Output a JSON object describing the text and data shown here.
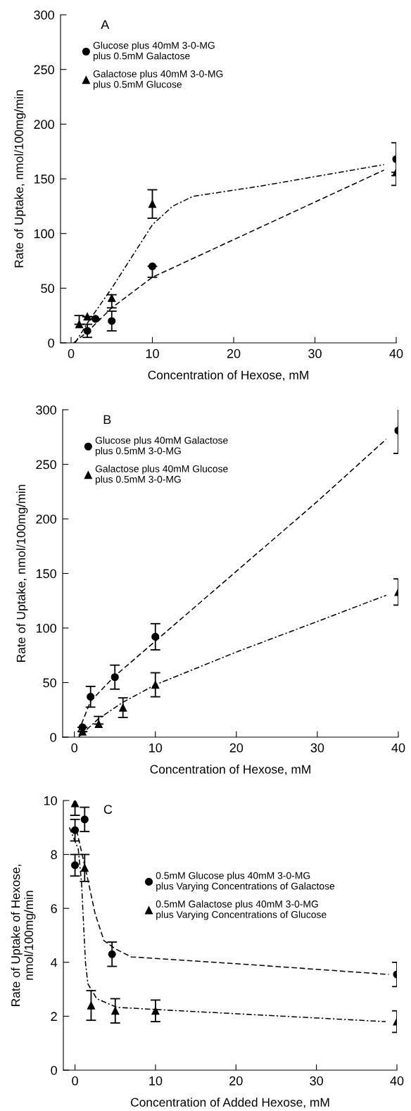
{
  "chart_data": [
    {
      "type": "scatter",
      "title": "A",
      "xlabel": "Concentration of Hexose, mM",
      "ylabel": "Rate of Uptake, nmol/100mg/min",
      "xlim": [
        -1.3,
        40
      ],
      "ylim": [
        0,
        300
      ],
      "xticks": [
        0,
        10,
        20,
        30,
        40
      ],
      "yticks": [
        0,
        50,
        100,
        150,
        200,
        250,
        300
      ],
      "legend": "top left",
      "grid": false,
      "series": [
        {
          "name": "Glucose plus 40mM 3-0-MG\nplus 0.5mM Galactose",
          "color": "#000000",
          "marker": "circle",
          "x": [
            2,
            3,
            5,
            10,
            40
          ],
          "values": [
            11,
            22,
            20,
            70,
            168
          ],
          "errors": [
            6,
            null,
            9,
            [
              60,
              70
            ],
            15
          ]
        },
        {
          "name": "Galactose plus 40mM 3-0-MG\nplus 0.5mM Glucose",
          "color": "#000000",
          "marker": "triangle",
          "x": [
            1,
            2,
            5,
            10,
            40
          ],
          "values": [
            17,
            24,
            41,
            127,
            156
          ],
          "errors": [
            [
              17,
              25
            ],
            null,
            [
              32,
              44
            ],
            13,
            [
              144,
              156
            ]
          ]
        },
        {
          "type": "line",
          "color": "#000000",
          "line_style": "dashed",
          "x": [
            0.3,
            2,
            5,
            10,
            38.5
          ],
          "values": [
            0,
            10,
            32,
            60,
            158
          ]
        },
        {
          "type": "line",
          "color": "#000000",
          "line_style": "dashdot",
          "x": [
            0.5,
            2,
            5,
            10,
            12.5,
            15,
            23,
            38.5
          ],
          "values": [
            0,
            18,
            50,
            108,
            125,
            134,
            143,
            163
          ]
        }
      ]
    },
    {
      "type": "scatter",
      "title": "B",
      "xlabel": "Concentration of Hexose, mM",
      "ylabel": "Rate of Uptake, nmol/100mg/min",
      "xlim": [
        -1.45,
        40
      ],
      "ylim": [
        0,
        300
      ],
      "xticks": [
        0,
        10,
        20,
        30,
        40
      ],
      "yticks": [
        0,
        50,
        100,
        150,
        200,
        250,
        300
      ],
      "legend": "top left",
      "grid": false,
      "series": [
        {
          "name": "Glucose plus 40mM Galactose\nplus 0.5mM 3-0-MG",
          "color": "#000000",
          "marker": "circle",
          "x": [
            1,
            2,
            5,
            10,
            40
          ],
          "values": [
            9,
            37,
            55,
            92,
            281
          ],
          "errors": [
            null,
            9.5,
            11,
            12,
            21
          ]
        },
        {
          "name": "Galactose plus 40mM Glucose\nplus 0.5mM 3-0-MG",
          "color": "#000000",
          "marker": "triangle",
          "x": [
            1,
            3,
            6,
            10,
            40
          ],
          "values": [
            5,
            12,
            27,
            48,
            133
          ],
          "errors": [
            null,
            [
              12,
              19
            ],
            9,
            11,
            12
          ]
        },
        {
          "type": "line",
          "color": "#000000",
          "line_style": "dashed",
          "x": [
            0.5,
            2,
            5,
            10,
            20,
            30,
            38.5
          ],
          "values": [
            5,
            33,
            56,
            88,
            152,
            216,
            273
          ]
        },
        {
          "type": "line",
          "color": "#000000",
          "line_style": "dashdot",
          "x": [
            0.5,
            3,
            6,
            10,
            20,
            30,
            38.5
          ],
          "values": [
            0,
            17,
            32,
            48,
            78,
            106,
            130
          ]
        }
      ]
    },
    {
      "type": "scatter",
      "title": "C",
      "xlabel": "Concentration of Added Hexose, mM",
      "ylabel": "Rate of Uptake of Hexose,\nnmol/100mg/min",
      "xlim": [
        -1.45,
        40
      ],
      "ylim": [
        0,
        10
      ],
      "xticks": [
        0,
        10,
        20,
        30,
        40
      ],
      "yticks": [
        0,
        2,
        4,
        6,
        8,
        10
      ],
      "legend": "right",
      "grid": false,
      "series": [
        {
          "name": "0.5mM Glucose plus 40mM 3-0-MG\nplus Varying Concentrations of Galactose",
          "color": "#000000",
          "marker": "circle",
          "x": [
            0,
            0,
            1.2,
            4.6,
            40
          ],
          "values": [
            8.9,
            7.6,
            9.3,
            4.3,
            3.55
          ],
          "errors": [
            0.4,
            0.4,
            0.45,
            0.45,
            0.45
          ]
        },
        {
          "name": "0.5mM Galactose plus 40mM 3-0-MG\nplus Varying Concentrations of Glucose",
          "color": "#000000",
          "marker": "triangle",
          "x": [
            0,
            1.2,
            2,
            5,
            10,
            40
          ],
          "values": [
            9.9,
            7.5,
            2.4,
            2.2,
            2.2,
            1.8
          ],
          "errors": [
            0.45,
            0.5,
            0.55,
            0.45,
            0.4,
            0.4
          ]
        },
        {
          "type": "line",
          "color": "#000000",
          "line_style": "dashed",
          "x": [
            0.2,
            1.5,
            2.5,
            3.6,
            5,
            7,
            20,
            39
          ],
          "values": [
            8.9,
            7.2,
            5.8,
            4.8,
            4.5,
            4.2,
            3.95,
            3.55
          ]
        },
        {
          "type": "line",
          "color": "#000000",
          "line_style": "dashdot",
          "x": [
            -0.7,
            0.4,
            0.8,
            1.0,
            1.3,
            1.6,
            2.7,
            5.2,
            10,
            38.6
          ],
          "values": [
            9.0,
            8.2,
            7.0,
            5.8,
            4.0,
            3.2,
            2.65,
            2.33,
            2.25,
            1.8
          ]
        }
      ]
    }
  ]
}
